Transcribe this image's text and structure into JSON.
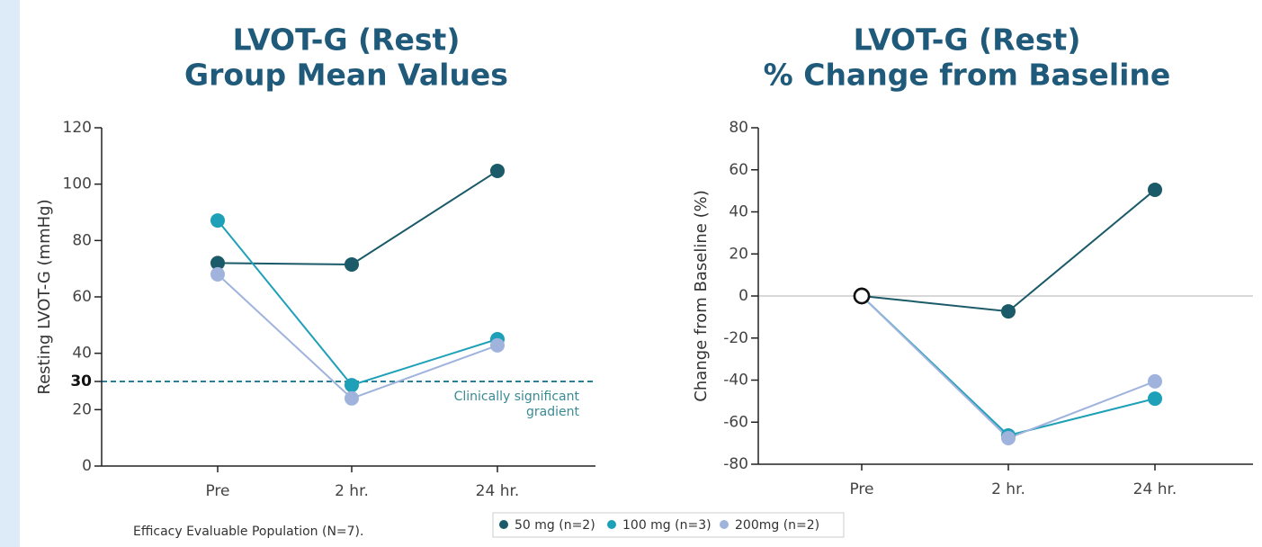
{
  "chart_data": [
    {
      "type": "line",
      "title": [
        "LVOT-G (Rest)",
        "Group Mean Values"
      ],
      "y_label": "Resting LVOT-G (mmHg)",
      "categories": [
        "Pre",
        "2 hr.",
        "24 hr."
      ],
      "ylim": [
        0,
        120
      ],
      "yticks": [
        0,
        20,
        40,
        60,
        80,
        100,
        120
      ],
      "reference_line": {
        "value": 30,
        "color": "#2a7f9a",
        "annotation": [
          "Clinically significant",
          "gradient"
        ]
      },
      "series": [
        {
          "name": "50 mg (n=2)",
          "color": "#1b5a68",
          "values": [
            72,
            71.5,
            104.7
          ]
        },
        {
          "name": "100 mg (n=3)",
          "color": "#1ea0b8",
          "values": [
            87.1,
            28.7,
            45
          ]
        },
        {
          "name": "200mg (n=2)",
          "color": "#9fb3dc",
          "values": [
            68,
            24,
            42.8
          ]
        }
      ]
    },
    {
      "type": "line",
      "title": [
        "LVOT-G (Rest)",
        "% Change from Baseline"
      ],
      "y_label": "Change from Baseline (%)",
      "categories": [
        "Pre",
        "2 hr.",
        "24 hr."
      ],
      "ylim": [
        -80,
        80
      ],
      "yticks": [
        -80,
        -60,
        -40,
        -20,
        0,
        20,
        40,
        60,
        80
      ],
      "zero_line": true,
      "baseline_marker": "hollow",
      "series": [
        {
          "color": "#1b5a68",
          "values": [
            0,
            -7.3,
            50.5
          ]
        },
        {
          "color": "#1ea0b8",
          "values": [
            0,
            -66.3,
            -48.8
          ]
        },
        {
          "color": "#9fb3dc",
          "values": [
            0,
            -67.6,
            -40.6
          ]
        }
      ]
    }
  ],
  "footnote": "Efficacy Evaluable Population (N=7)."
}
